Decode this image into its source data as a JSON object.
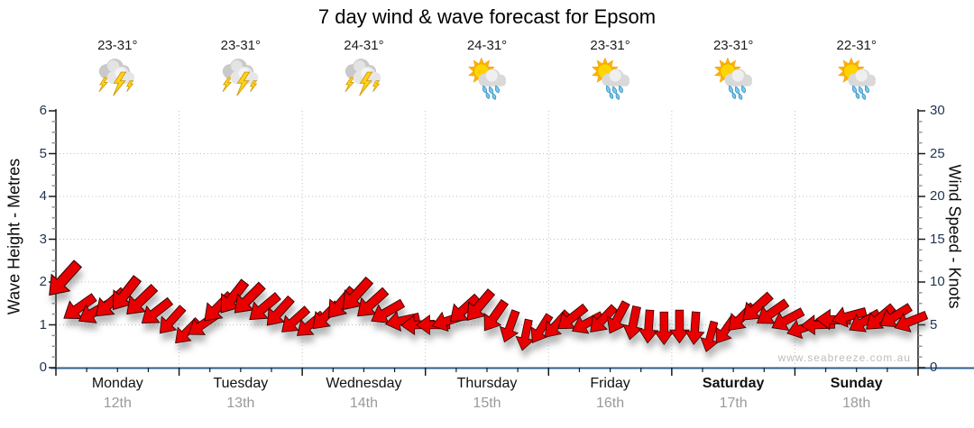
{
  "title": "7 day wind & wave forecast for Epsom",
  "watermark": "www.seabreeze.com.au",
  "colors": {
    "arrow_fill": "#e80000",
    "arrow_outline": "#3c0000",
    "axis_line": "#1a1a1a",
    "baseline": "#2b5f8e",
    "gridline": "#c0c0c0",
    "minor_tick": "#909090",
    "tick_label": "#1f3350",
    "day_label": "#111111",
    "date_label": "#9a9a9a",
    "temp_label": "#1b1b1b",
    "watermark": "#bdbdbd"
  },
  "left_axis": {
    "label": "Wave Height - Metres",
    "min": 0,
    "max": 6,
    "major_step": 1,
    "minor_step": 0.25,
    "tick_labels": [
      "0",
      "1",
      "2",
      "3",
      "4",
      "5",
      "6"
    ]
  },
  "right_axis": {
    "label": "Wind Speed - Knots",
    "min": 0,
    "max": 30,
    "major_step": 5,
    "minor_step": 1.25,
    "tick_labels": [
      "0",
      "5",
      "10",
      "15",
      "20",
      "25",
      "30"
    ]
  },
  "days": [
    {
      "name": "Monday",
      "date": "12th",
      "temp": "23-31°",
      "icon": "thunderstorm",
      "bold": false
    },
    {
      "name": "Tuesday",
      "date": "13th",
      "temp": "23-31°",
      "icon": "thunderstorm",
      "bold": false
    },
    {
      "name": "Wednesday",
      "date": "14th",
      "temp": "24-31°",
      "icon": "thunderstorm",
      "bold": false
    },
    {
      "name": "Thursday",
      "date": "15th",
      "temp": "24-31°",
      "icon": "sun-showers",
      "bold": false
    },
    {
      "name": "Friday",
      "date": "16th",
      "temp": "23-31°",
      "icon": "sun-showers",
      "bold": false
    },
    {
      "name": "Saturday",
      "date": "17th",
      "temp": "23-31°",
      "icon": "sun-showers",
      "bold": true
    },
    {
      "name": "Sunday",
      "date": "18th",
      "temp": "22-31°",
      "icon": "sun-showers",
      "bold": true
    }
  ],
  "chart_data": {
    "type": "scatter",
    "title": "7 day wind & wave forecast for Epsom",
    "ylabel_left": "Wave Height - Metres",
    "ylabel_right": "Wind Speed - Knots",
    "ylim_left": [
      0,
      6
    ],
    "ylim_right": [
      0,
      30
    ],
    "grid": "dotted horizontal at whole metres (5-knot steps), dotted vertical at day boundaries",
    "legend_position": "none",
    "series": [
      {
        "name": "Wind speed & direction",
        "unit": "knots",
        "marker": "red direction arrow",
        "sample_interval_hours": 3,
        "start": "Monday 00:00",
        "dir_convention": "degrees clockwise from screen-up; arrow points toward direction wind blows",
        "points": [
          [
            10.3,
            222
          ],
          [
            7.0,
            235
          ],
          [
            6.5,
            240
          ],
          [
            7.5,
            228
          ],
          [
            8.6,
            218
          ],
          [
            7.8,
            226
          ],
          [
            6.5,
            232
          ],
          [
            5.5,
            222
          ],
          [
            4.2,
            225
          ],
          [
            5.0,
            235
          ],
          [
            7.0,
            225
          ],
          [
            8.2,
            218
          ],
          [
            8.0,
            225
          ],
          [
            7.0,
            230
          ],
          [
            6.5,
            222
          ],
          [
            5.5,
            228
          ],
          [
            5.0,
            230
          ],
          [
            6.0,
            225
          ],
          [
            7.5,
            220
          ],
          [
            8.5,
            222
          ],
          [
            7.5,
            228
          ],
          [
            6.5,
            240
          ],
          [
            5.5,
            258
          ],
          [
            5.0,
            268
          ],
          [
            5.0,
            270
          ],
          [
            5.5,
            252
          ],
          [
            6.8,
            228
          ],
          [
            7.2,
            220
          ],
          [
            6.0,
            215
          ],
          [
            4.8,
            200
          ],
          [
            3.8,
            192
          ],
          [
            4.5,
            212
          ],
          [
            5.0,
            222
          ],
          [
            5.8,
            232
          ],
          [
            5.2,
            242
          ],
          [
            5.6,
            224
          ],
          [
            5.8,
            208
          ],
          [
            5.2,
            192
          ],
          [
            4.8,
            184
          ],
          [
            4.6,
            180
          ],
          [
            4.8,
            180
          ],
          [
            4.6,
            184
          ],
          [
            3.6,
            195
          ],
          [
            4.4,
            215
          ],
          [
            5.8,
            225
          ],
          [
            7.0,
            228
          ],
          [
            6.4,
            235
          ],
          [
            5.6,
            242
          ],
          [
            4.6,
            252
          ],
          [
            5.0,
            268
          ],
          [
            5.6,
            272
          ],
          [
            6.0,
            255
          ],
          [
            5.4,
            240
          ],
          [
            5.8,
            230
          ],
          [
            6.0,
            238
          ],
          [
            5.4,
            248
          ]
        ]
      }
    ]
  }
}
